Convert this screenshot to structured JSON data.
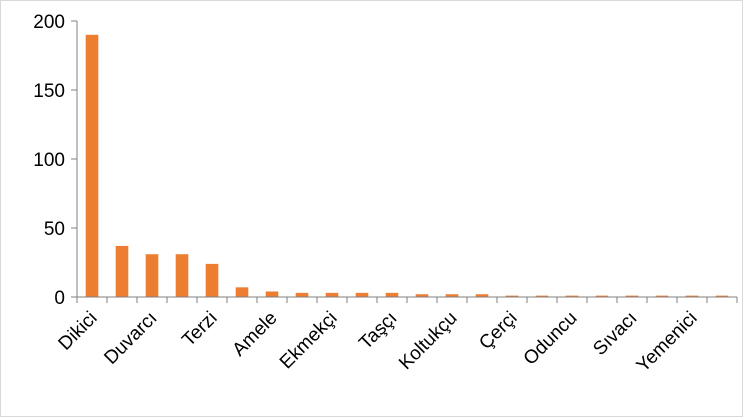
{
  "chart_data": {
    "type": "bar",
    "title": "",
    "xlabel": "",
    "ylabel": "",
    "categories": [
      "Dikici",
      "",
      "Duvarcı",
      "",
      "Terzi",
      "",
      "Amele",
      "",
      "Ekmekçi",
      "",
      "Taşçı",
      "",
      "Koltukçu",
      "",
      "Çerçi",
      "",
      "Oduncu",
      "",
      "Sıvacı",
      "",
      "Yemenici",
      ""
    ],
    "values": [
      190,
      37,
      31,
      31,
      24,
      7,
      4,
      3,
      3,
      3,
      3,
      2,
      2,
      2,
      1,
      1,
      1,
      1,
      1,
      1,
      1,
      1
    ],
    "ylim": [
      0,
      200
    ],
    "yticks": [
      0,
      50,
      100,
      150,
      200
    ],
    "grid": false,
    "legend": "none",
    "bar_color": "#ed7d31",
    "axis_color": "#808080"
  }
}
